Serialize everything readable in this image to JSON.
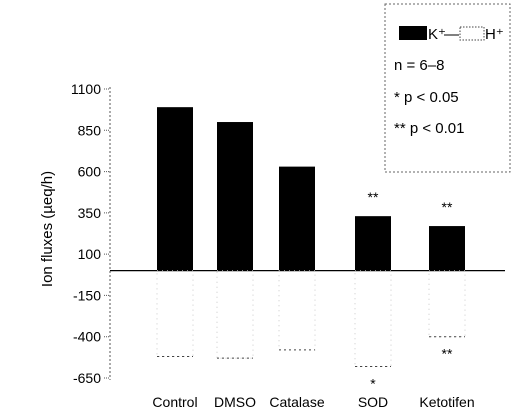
{
  "chart_data": {
    "type": "bar",
    "title": "",
    "xlabel": "",
    "ylabel": "Ion fluxes (µeq/h)",
    "ylim": [
      -650,
      1100
    ],
    "yticks": [
      1100,
      850,
      600,
      350,
      100,
      -150,
      -400,
      -650
    ],
    "ytick_labels": [
      "1100",
      "850",
      "600",
      "350",
      "100",
      "-150",
      "-400",
      "-650"
    ],
    "categories": [
      "Control",
      "DMSO",
      "Catalase",
      "SOD",
      "Ketotifen"
    ],
    "series": [
      {
        "name": "K⁺",
        "values": [
          990,
          900,
          630,
          330,
          270
        ],
        "significance": [
          "",
          "",
          "",
          "**",
          "**"
        ],
        "style": "solid black bar"
      },
      {
        "name": "H⁺",
        "values": [
          -520,
          -530,
          -480,
          -580,
          -400
        ],
        "significance": [
          "",
          "",
          "",
          "*",
          "**"
        ],
        "style": "open bar (dotted outline)"
      }
    ],
    "legend": {
      "placement": "top-right",
      "separator": "—",
      "lines": [
        "n = 6–8",
        "* p < 0.05",
        "** p < 0.01"
      ]
    },
    "colors": {
      "k_bar": "#000000",
      "outline": "#555555"
    }
  }
}
